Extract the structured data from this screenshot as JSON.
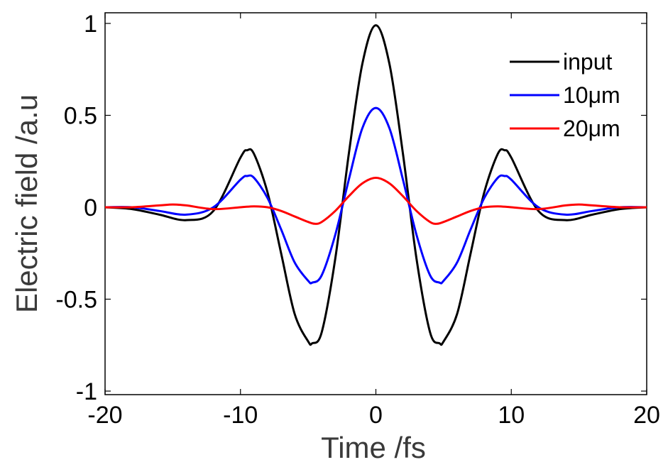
{
  "chart_data": {
    "type": "line",
    "title": "",
    "xlabel": "Time /fs",
    "ylabel": "Electric field /a.u",
    "xlim": [
      -20,
      20
    ],
    "ylim": [
      -1,
      1
    ],
    "xticks": [
      -20,
      -10,
      0,
      10,
      20
    ],
    "xtick_labels": [
      "-20",
      "-10",
      "0",
      "10",
      "20"
    ],
    "yticks": [
      -1,
      -0.5,
      0,
      0.5,
      1
    ],
    "ytick_labels": [
      "-1",
      "-0.5",
      "0",
      "0.5",
      "1"
    ],
    "grid": false,
    "legend_position": "top-right",
    "series": [
      {
        "name": "input",
        "color": "#000000",
        "x": [
          -20,
          -18,
          -16,
          -14,
          -12,
          -10,
          -9.5,
          -9,
          -8,
          -7,
          -6,
          -5,
          -4.7,
          -4,
          -3,
          -2,
          -1,
          0,
          1,
          2,
          3,
          4,
          4.7,
          5,
          6,
          7,
          8,
          9,
          9.5,
          10,
          12,
          14,
          16,
          18,
          20
        ],
        "y": [
          0.0,
          -0.01,
          -0.04,
          -0.07,
          -0.02,
          0.27,
          0.31,
          0.29,
          0.08,
          -0.25,
          -0.58,
          -0.73,
          -0.74,
          -0.68,
          -0.28,
          0.29,
          0.78,
          0.99,
          0.78,
          0.29,
          -0.28,
          -0.68,
          -0.74,
          -0.73,
          -0.58,
          -0.25,
          0.08,
          0.29,
          0.31,
          0.27,
          -0.02,
          -0.07,
          -0.04,
          -0.01,
          0.0
        ]
      },
      {
        "name": "10μm",
        "color": "#0000ff",
        "x": [
          -20,
          -18,
          -16,
          -14,
          -12,
          -10,
          -9.5,
          -9,
          -8,
          -7,
          -6,
          -5,
          -4.7,
          -4,
          -3,
          -2,
          -1,
          0,
          1,
          2,
          3,
          4,
          4.7,
          5,
          6,
          7,
          8,
          9,
          9.5,
          10,
          12,
          14,
          16,
          18,
          20
        ],
        "y": [
          0.0,
          0.0,
          -0.02,
          -0.04,
          0.0,
          0.15,
          0.17,
          0.16,
          0.05,
          -0.12,
          -0.3,
          -0.4,
          -0.41,
          -0.37,
          -0.15,
          0.15,
          0.43,
          0.54,
          0.43,
          0.15,
          -0.15,
          -0.37,
          -0.41,
          -0.4,
          -0.3,
          -0.12,
          0.05,
          0.16,
          0.17,
          0.15,
          0.0,
          -0.04,
          -0.02,
          0.0,
          0.0
        ]
      },
      {
        "name": "20μm",
        "color": "#ff0000",
        "x": [
          -20,
          -18,
          -16,
          -15,
          -14,
          -12,
          -10,
          -9,
          -8,
          -7,
          -6,
          -5,
          -4.5,
          -4,
          -3,
          -2,
          -1,
          0,
          1,
          2,
          3,
          4,
          4.5,
          5,
          6,
          7,
          8,
          9,
          10,
          12,
          14,
          15,
          16,
          18,
          20
        ],
        "y": [
          0.0,
          0.0,
          0.01,
          0.015,
          0.01,
          -0.01,
          0.0,
          0.005,
          0.0,
          -0.02,
          -0.05,
          -0.08,
          -0.09,
          -0.08,
          -0.02,
          0.06,
          0.13,
          0.16,
          0.13,
          0.06,
          -0.02,
          -0.08,
          -0.09,
          -0.08,
          -0.05,
          -0.02,
          0.0,
          0.005,
          0.0,
          -0.01,
          0.01,
          0.015,
          0.01,
          0.0,
          0.0
        ]
      }
    ]
  }
}
